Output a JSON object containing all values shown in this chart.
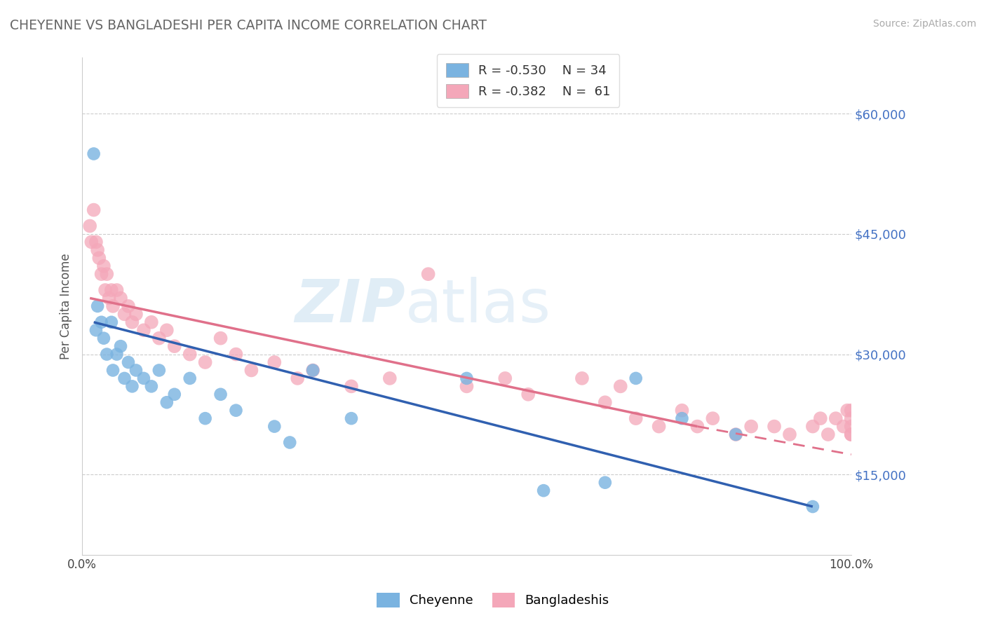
{
  "title": "CHEYENNE VS BANGLADESHI PER CAPITA INCOME CORRELATION CHART",
  "source": "Source: ZipAtlas.com",
  "ylabel": "Per Capita Income",
  "yticks": [
    15000,
    30000,
    45000,
    60000
  ],
  "ytick_labels": [
    "$15,000",
    "$30,000",
    "$45,000",
    "$60,000"
  ],
  "xlim": [
    0.0,
    100.0
  ],
  "ylim": [
    5000,
    67000
  ],
  "cheyenne_color": "#7ab3e0",
  "bangladeshi_color": "#f4a7b9",
  "cheyenne_line_color": "#3060b0",
  "bangladeshi_line_color": "#e0708a",
  "watermark_color": "#c8dff0",
  "title_color": "#666666",
  "source_color": "#aaaaaa",
  "ylabel_color": "#555555",
  "ytick_color": "#4472c4",
  "cheyenne_x": [
    1.5,
    1.8,
    2.0,
    2.5,
    2.8,
    3.2,
    3.8,
    4.0,
    4.5,
    5.0,
    5.5,
    6.0,
    6.5,
    7.0,
    8.0,
    9.0,
    10.0,
    11.0,
    12.0,
    14.0,
    16.0,
    18.0,
    20.0,
    25.0,
    27.0,
    30.0,
    35.0,
    50.0,
    60.0,
    68.0,
    72.0,
    78.0,
    85.0,
    95.0
  ],
  "cheyenne_y": [
    55000,
    33000,
    36000,
    34000,
    32000,
    30000,
    34000,
    28000,
    30000,
    31000,
    27000,
    29000,
    26000,
    28000,
    27000,
    26000,
    28000,
    24000,
    25000,
    27000,
    22000,
    25000,
    23000,
    21000,
    19000,
    28000,
    22000,
    27000,
    13000,
    14000,
    27000,
    22000,
    20000,
    11000
  ],
  "bangladeshi_x": [
    1.0,
    1.2,
    1.5,
    1.8,
    2.0,
    2.2,
    2.5,
    2.8,
    3.0,
    3.2,
    3.5,
    3.8,
    4.0,
    4.5,
    5.0,
    5.5,
    6.0,
    6.5,
    7.0,
    8.0,
    9.0,
    10.0,
    11.0,
    12.0,
    14.0,
    16.0,
    18.0,
    20.0,
    22.0,
    25.0,
    28.0,
    30.0,
    35.0,
    40.0,
    45.0,
    50.0,
    55.0,
    58.0,
    65.0,
    68.0,
    70.0,
    72.0,
    75.0,
    78.0,
    80.0,
    82.0,
    85.0,
    87.0,
    90.0,
    92.0,
    95.0,
    96.0,
    97.0,
    98.0,
    99.0,
    99.5,
    100.0,
    100.0,
    100.0,
    100.0,
    100.0
  ],
  "bangladeshi_y": [
    46000,
    44000,
    48000,
    44000,
    43000,
    42000,
    40000,
    41000,
    38000,
    40000,
    37000,
    38000,
    36000,
    38000,
    37000,
    35000,
    36000,
    34000,
    35000,
    33000,
    34000,
    32000,
    33000,
    31000,
    30000,
    29000,
    32000,
    30000,
    28000,
    29000,
    27000,
    28000,
    26000,
    27000,
    40000,
    26000,
    27000,
    25000,
    27000,
    24000,
    26000,
    22000,
    21000,
    23000,
    21000,
    22000,
    20000,
    21000,
    21000,
    20000,
    21000,
    22000,
    20000,
    22000,
    21000,
    23000,
    20000,
    21000,
    22000,
    20000,
    23000
  ],
  "ch_line_x0": 1.5,
  "ch_line_x1": 95.0,
  "ch_line_y0": 34000,
  "ch_line_y1": 11000,
  "bd_line_x0": 1.0,
  "bd_line_x1": 80.0,
  "bd_line_y0": 37000,
  "bd_line_y1": 21000,
  "bd_dash_x0": 80.0,
  "bd_dash_x1": 100.0,
  "bd_dash_y0": 21000,
  "bd_dash_y1": 17500
}
